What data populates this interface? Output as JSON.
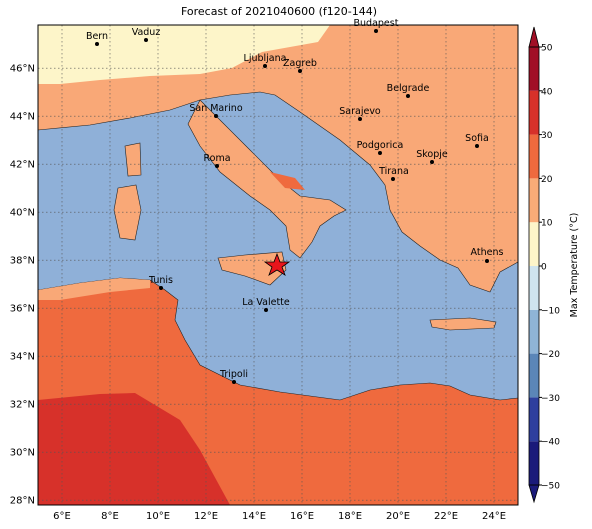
{
  "map": {
    "title": "Forecast of 2021040600 (f120-144)",
    "lonlim": [
      5,
      25
    ],
    "latlim": [
      27.8,
      47.8
    ],
    "lon_ticks": [
      {
        "value": 6,
        "label": "6°E"
      },
      {
        "value": 8,
        "label": "8°E"
      },
      {
        "value": 10,
        "label": "10°E"
      },
      {
        "value": 12,
        "label": "12°E"
      },
      {
        "value": 14,
        "label": "14°E"
      },
      {
        "value": 16,
        "label": "16°E"
      },
      {
        "value": 18,
        "label": "18°E"
      },
      {
        "value": 20,
        "label": "20°E"
      },
      {
        "value": 22,
        "label": "22°E"
      },
      {
        "value": 24,
        "label": "24°E"
      }
    ],
    "lat_ticks": [
      {
        "value": 28,
        "label": "28°N"
      },
      {
        "value": 30,
        "label": "30°N"
      },
      {
        "value": 32,
        "label": "32°N"
      },
      {
        "value": 34,
        "label": "34°N"
      },
      {
        "value": 36,
        "label": "36°N"
      },
      {
        "value": 38,
        "label": "38°N"
      },
      {
        "value": 40,
        "label": "40°N"
      },
      {
        "value": 42,
        "label": "42°N"
      },
      {
        "value": 44,
        "label": "44°N"
      },
      {
        "value": 46,
        "label": "46°N"
      }
    ],
    "cities": [
      "Bern",
      "Vaduz",
      "Budapest",
      "Ljubljana",
      "Zagreb",
      "Belgrade",
      "San Marino",
      "Sarajevo",
      "Sofia",
      "Podgorica",
      "Skopje",
      "Roma",
      "Tirana",
      "Athens",
      "Tunis",
      "La Valette",
      "Tripoli"
    ],
    "colorbar": {
      "label": "Max Temperature (°C)",
      "ticks": [
        {
          "value": -50,
          "label": "−50"
        },
        {
          "value": -40,
          "label": "−40"
        },
        {
          "value": -30,
          "label": "−30"
        },
        {
          "value": -20,
          "label": "−20"
        },
        {
          "value": -10,
          "label": "−10"
        },
        0,
        10,
        20,
        30,
        40,
        50
      ],
      "colors": [
        "#1a1a7a",
        "#2e3f9e",
        "#5b86b8",
        "#8fb4d6",
        "#cfe4ee",
        "#fdf5c9",
        "#f9ab77",
        "#ef6a3e",
        "#d7312a",
        "#a10f26"
      ]
    }
  }
}
